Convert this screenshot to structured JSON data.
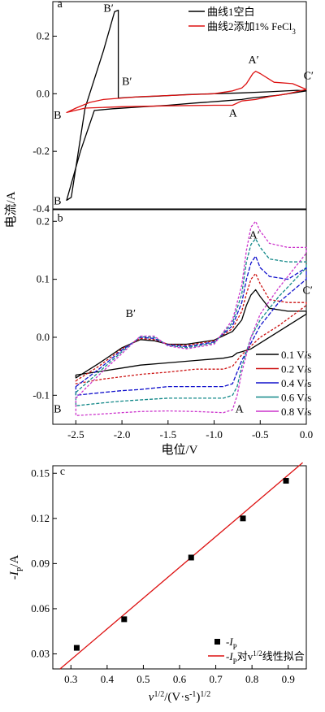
{
  "chart_data": [
    {
      "panel": "a",
      "type": "line",
      "xlim": [
        -2.75,
        0.0
      ],
      "ylim": [
        -0.4,
        0.32
      ],
      "yticks": [
        -0.4,
        -0.2,
        0.0,
        0.2
      ],
      "ytick_labels": [
        "-0.4",
        "-0.2",
        "0.0",
        "0.2"
      ],
      "legend_position": "top-right",
      "series": [
        {
          "name": "曲线1空白",
          "color": "#000000",
          "loop": true,
          "x": [
            0.0,
            -0.3,
            -0.6,
            -0.7,
            -0.9,
            -1.2,
            -1.5,
            -1.8,
            -2.1,
            -2.3,
            -2.45,
            -2.6,
            -2.55,
            -2.4,
            -2.2,
            -2.08,
            -2.04,
            -2.04,
            -1.9,
            -1.6,
            -1.3,
            -1.0,
            -0.7,
            -0.4,
            -0.1,
            0.0
          ],
          "y": [
            0.01,
            -0.005,
            -0.015,
            -0.02,
            -0.025,
            -0.032,
            -0.04,
            -0.046,
            -0.052,
            -0.058,
            -0.2,
            -0.37,
            -0.36,
            -0.05,
            0.15,
            0.285,
            0.29,
            -0.015,
            -0.012,
            -0.008,
            -0.003,
            0.0,
            0.003,
            0.007,
            0.012,
            0.01
          ]
        },
        {
          "name": "曲线2添加1% FeCl₃",
          "color": "#dd1111",
          "loop": true,
          "x": [
            0.0,
            -0.2,
            -0.4,
            -0.55,
            -0.7,
            -0.8,
            -1.0,
            -1.5,
            -2.0,
            -2.4,
            -2.6,
            -2.5,
            -2.35,
            -2.2,
            -1.8,
            -1.4,
            -1.0,
            -0.8,
            -0.7,
            -0.65,
            -0.58,
            -0.55,
            -0.5,
            -0.35,
            -0.15,
            0.0
          ],
          "y": [
            0.015,
            0.0,
            -0.01,
            -0.02,
            -0.025,
            -0.04,
            -0.04,
            -0.042,
            -0.045,
            -0.05,
            -0.065,
            -0.05,
            -0.03,
            -0.02,
            -0.01,
            -0.005,
            0.0,
            0.01,
            0.02,
            0.035,
            0.07,
            0.078,
            0.07,
            0.04,
            0.035,
            0.015
          ]
        }
      ],
      "annotations": [
        {
          "text": "a",
          "x": -2.7,
          "y": 0.3
        },
        {
          "text": "B′",
          "x": -2.2,
          "y": 0.285
        },
        {
          "text": "B′",
          "x": -2.0,
          "y": 0.03
        },
        {
          "text": "A′",
          "x": -0.63,
          "y": 0.105
        },
        {
          "text": "C′",
          "x": -0.03,
          "y": 0.05
        },
        {
          "text": "A",
          "x": -0.84,
          "y": -0.08
        },
        {
          "text": "B",
          "x": -2.74,
          "y": -0.087
        },
        {
          "text": "B",
          "x": -2.74,
          "y": -0.385
        }
      ]
    },
    {
      "panel": "b",
      "type": "line",
      "xlim": [
        -2.75,
        0.0
      ],
      "ylim": [
        -0.15,
        0.22
      ],
      "yticks": [
        -0.1,
        0.0,
        0.1,
        0.2
      ],
      "ytick_labels": [
        "-0.1",
        "0.0",
        "0.1",
        "0.2"
      ],
      "xticks": [
        -2.5,
        -2.0,
        -1.5,
        -1.0,
        -0.5,
        0.0
      ],
      "xtick_labels": [
        "-2.5",
        "-2.0",
        "-1.5",
        "-1.0",
        "-0.5",
        "0.0"
      ],
      "xlabel": "电位/V",
      "legend_position": "lower-right",
      "cycle_x": [
        -2.5,
        -2.25,
        -2.0,
        -1.8,
        -1.65,
        -1.5,
        -1.3,
        -1.0,
        -0.8,
        -0.7,
        -0.65,
        -0.6,
        -0.55,
        -0.5,
        -0.4,
        -0.2,
        0.0,
        0.0,
        -0.3,
        -0.5,
        -0.6,
        -0.7,
        -0.75,
        -0.8,
        -0.9,
        -1.2,
        -1.5,
        -1.8,
        -2.0,
        -2.2,
        -2.5
      ],
      "series": [
        {
          "name": "0.1 V/s",
          "color": "#000000",
          "y": [
            -0.07,
            -0.045,
            -0.018,
            -0.004,
            -0.006,
            -0.012,
            -0.012,
            -0.005,
            0.01,
            0.03,
            0.055,
            0.073,
            0.082,
            0.07,
            0.05,
            0.045,
            0.045,
            0.04,
            0.01,
            -0.01,
            -0.02,
            -0.025,
            -0.027,
            -0.033,
            -0.036,
            -0.04,
            -0.044,
            -0.048,
            -0.053,
            -0.058,
            -0.065
          ]
        },
        {
          "name": "0.2 V/s",
          "color": "#cc1111",
          "y": [
            -0.075,
            -0.05,
            -0.02,
            -0.002,
            -0.004,
            -0.012,
            -0.014,
            -0.006,
            0.015,
            0.045,
            0.075,
            0.1,
            0.11,
            0.092,
            0.065,
            0.06,
            0.06,
            0.055,
            0.02,
            0.0,
            -0.015,
            -0.03,
            -0.04,
            -0.05,
            -0.055,
            -0.055,
            -0.06,
            -0.064,
            -0.068,
            -0.072,
            -0.08
          ]
        },
        {
          "name": "0.4 V/s",
          "color": "#1111cc",
          "y": [
            -0.085,
            -0.055,
            -0.022,
            0.0,
            -0.002,
            -0.013,
            -0.016,
            -0.008,
            0.02,
            0.06,
            0.1,
            0.128,
            0.14,
            0.12,
            0.105,
            0.1,
            0.12,
            0.1,
            0.06,
            0.02,
            -0.01,
            -0.04,
            -0.06,
            -0.08,
            -0.085,
            -0.085,
            -0.085,
            -0.09,
            -0.092,
            -0.095,
            -0.1
          ]
        },
        {
          "name": "0.6 V/s",
          "color": "#118888",
          "y": [
            -0.095,
            -0.06,
            -0.025,
            0.001,
            0.0,
            -0.014,
            -0.018,
            -0.01,
            0.025,
            0.075,
            0.13,
            0.16,
            0.17,
            0.155,
            0.135,
            0.13,
            0.13,
            0.12,
            0.07,
            0.03,
            0.0,
            -0.05,
            -0.085,
            -0.1,
            -0.105,
            -0.105,
            -0.105,
            -0.108,
            -0.11,
            -0.113,
            -0.118
          ]
        },
        {
          "name": "0.8 V/s",
          "color": "#cc33cc",
          "y": [
            -0.105,
            -0.065,
            -0.028,
            0.002,
            0.002,
            -0.015,
            -0.02,
            -0.012,
            0.03,
            0.09,
            0.15,
            0.19,
            0.2,
            0.183,
            0.162,
            0.155,
            0.155,
            0.145,
            0.085,
            0.04,
            0.0,
            -0.06,
            -0.1,
            -0.125,
            -0.13,
            -0.128,
            -0.127,
            -0.128,
            -0.13,
            -0.132,
            -0.135
          ]
        }
      ],
      "annotations": [
        {
          "text": "b",
          "x": -2.7,
          "y": 0.2
        },
        {
          "text": "A′",
          "x": -0.62,
          "y": 0.17
        },
        {
          "text": "C′",
          "x": -0.04,
          "y": 0.075
        },
        {
          "text": "B′",
          "x": -1.96,
          "y": 0.035
        },
        {
          "text": "B",
          "x": -2.74,
          "y": -0.13
        },
        {
          "text": "A",
          "x": -0.77,
          "y": -0.13
        }
      ]
    },
    {
      "panel": "c",
      "type": "scatter",
      "xlim": [
        0.25,
        0.95
      ],
      "ylim": [
        0.02,
        0.155
      ],
      "xticks": [
        0.3,
        0.4,
        0.5,
        0.6,
        0.7,
        0.8,
        0.9
      ],
      "xtick_labels": [
        "0.3",
        "0.4",
        "0.5",
        "0.6",
        "0.7",
        "0.8",
        "0.9"
      ],
      "yticks": [
        0.03,
        0.06,
        0.09,
        0.12,
        0.15
      ],
      "ytick_labels": [
        "0.03",
        "0.06",
        "0.09",
        "0.12",
        "0.15"
      ],
      "legend_position": "lower-right",
      "points": {
        "name": "-I_P",
        "color": "#000000",
        "x": [
          0.316,
          0.447,
          0.632,
          0.775,
          0.894
        ],
        "y": [
          0.034,
          0.053,
          0.094,
          0.12,
          0.145
        ]
      },
      "fit_line": {
        "name": "-I_P对v^1/2线性拟合",
        "color": "#dd1111",
        "x": [
          0.27,
          0.94
        ],
        "y": [
          0.02,
          0.157
        ]
      },
      "annotations": [
        {
          "text": "c",
          "x": 0.27,
          "y": 0.149
        }
      ]
    }
  ],
  "shared_ylabel": "电流/A",
  "legend_a": [
    {
      "label": "曲线1空白",
      "color": "#000000"
    },
    {
      "label": "曲线2添加1% FeCl",
      "sub": "3",
      "color": "#dd1111"
    }
  ],
  "legend_b": [
    {
      "label": "0.1 V/s",
      "color": "#000000"
    },
    {
      "label": "0.2 V/s",
      "color": "#cc1111"
    },
    {
      "label": "0.4 V/s",
      "color": "#1111cc"
    },
    {
      "label": "0.6 V/s",
      "color": "#118888"
    },
    {
      "label": "0.8 V/s",
      "color": "#cc33cc"
    }
  ],
  "legend_c": {
    "point_label_prefix": "-I",
    "point_label_sub": "P",
    "line_label_prefix": "-I",
    "line_label_sub": "P",
    "line_label_mid": "对v",
    "line_label_sup": "1/2",
    "line_label_suffix": "线性拟合"
  },
  "c_ylabel": {
    "prefix": "-I",
    "sub": "P",
    "suffix": "/A"
  },
  "c_xlabel": {
    "v": "v",
    "sup1": "1/2",
    "mid": "/(V·s",
    "sup2": "-1",
    "close": ")",
    "sup3": "1/2"
  }
}
